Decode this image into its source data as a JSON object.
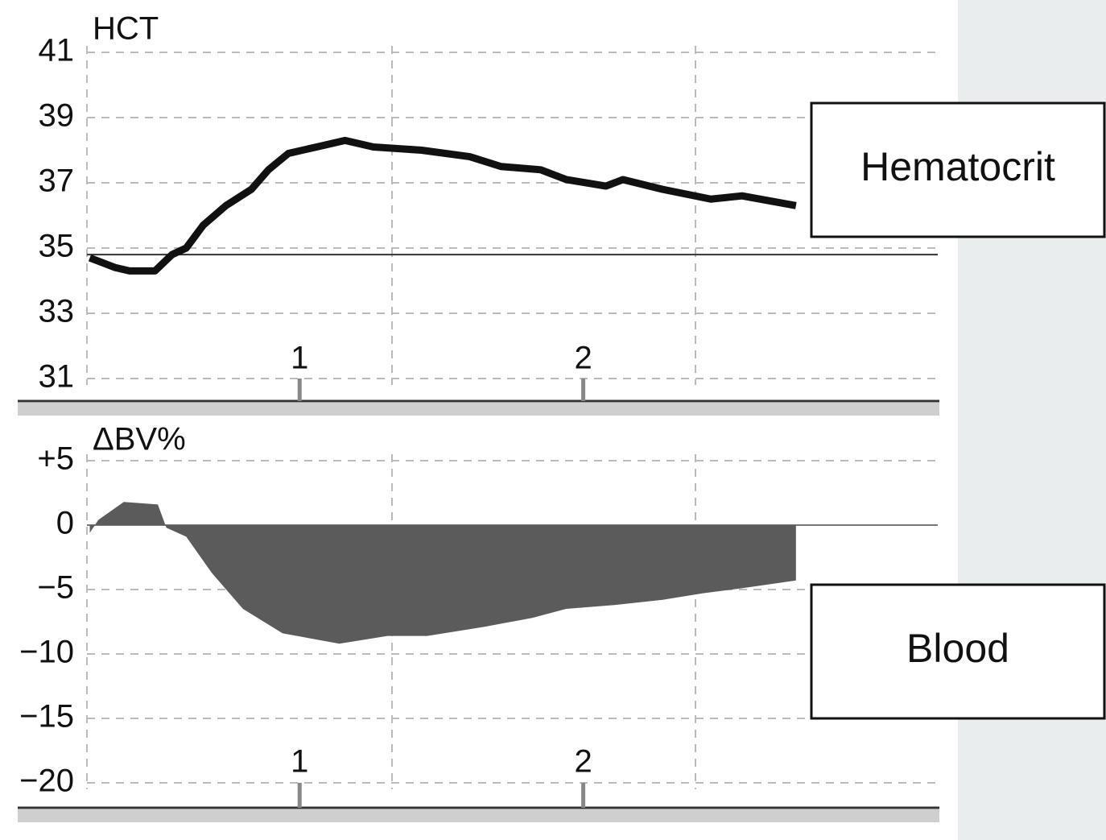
{
  "chart_data": [
    {
      "type": "line",
      "title": "HCT",
      "legend": "Hematocrit",
      "color": "#111111",
      "x": [
        0.26,
        0.29,
        0.35,
        0.4,
        0.49,
        0.55,
        0.6,
        0.66,
        0.74,
        0.83,
        0.89,
        0.96,
        1.06,
        1.16,
        1.26,
        1.43,
        1.6,
        1.71,
        1.85,
        1.94,
        2.08,
        2.14,
        2.28,
        2.45,
        2.56,
        2.75
      ],
      "values": [
        34.7,
        34.6,
        34.4,
        34.3,
        34.3,
        34.8,
        35.0,
        35.7,
        36.3,
        36.8,
        37.4,
        37.9,
        38.1,
        38.3,
        38.1,
        38.0,
        37.8,
        37.5,
        37.4,
        37.1,
        36.9,
        37.1,
        36.8,
        36.5,
        36.6,
        36.3
      ],
      "reference_line": 34.8,
      "xlim": [
        0.25,
        3.25
      ],
      "xticks": [
        1,
        2
      ],
      "ylim": [
        31,
        41
      ],
      "yticks": [
        31,
        33,
        35,
        37,
        39,
        41
      ],
      "grid": true
    },
    {
      "type": "area",
      "title": "ΔBV%",
      "legend": "Blood",
      "color": "#5b5b5b",
      "x": [
        0.26,
        0.29,
        0.38,
        0.5,
        0.53,
        0.6,
        0.69,
        0.8,
        0.94,
        1.14,
        1.31,
        1.45,
        1.65,
        1.82,
        1.94,
        2.11,
        2.28,
        2.42,
        2.56,
        2.75
      ],
      "values": [
        -0.6,
        0.4,
        1.8,
        1.6,
        -0.2,
        -0.9,
        -3.7,
        -6.5,
        -8.4,
        -9.2,
        -8.6,
        -8.6,
        -7.9,
        -7.2,
        -6.5,
        -6.2,
        -5.8,
        -5.3,
        -4.9,
        -4.3
      ],
      "xlim": [
        0.25,
        3.25
      ],
      "xticks": [
        1,
        2
      ],
      "ylim": [
        -20,
        5
      ],
      "yticks": [
        {
          "value": -20,
          "label": "−20"
        },
        {
          "value": -15,
          "label": "−15"
        },
        {
          "value": -10,
          "label": "−10"
        },
        {
          "value": -5,
          "label": "−5"
        },
        0,
        {
          "value": 5,
          "label": "+5"
        }
      ],
      "grid": true
    }
  ]
}
